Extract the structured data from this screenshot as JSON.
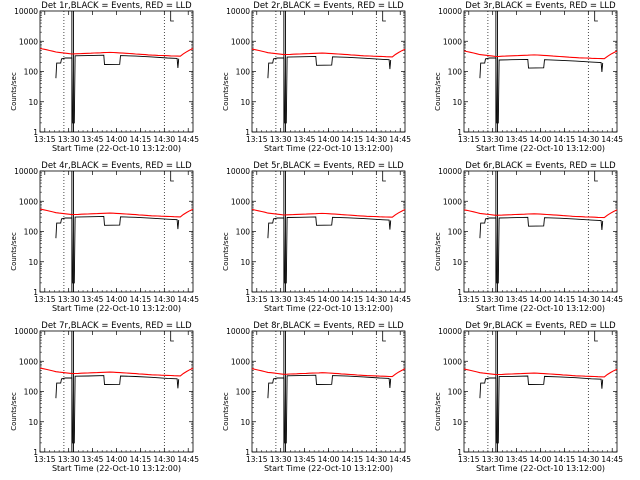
{
  "chart_data": {
    "type": "line",
    "xlabel": "Start Time (22-Oct-10 13:12:00)",
    "ylabel": "Counts/sec",
    "yscale": "log",
    "ylim": [
      1,
      10000
    ],
    "xlim_minutes_after_1312": [
      0,
      96
    ],
    "y_ticks": [
      "1",
      "10",
      "100",
      "1000",
      "10000"
    ],
    "x_ticks": [
      {
        "label": "13:15",
        "minute": 3
      },
      {
        "label": "13:30",
        "minute": 18
      },
      {
        "label": "13:45",
        "minute": 33
      },
      {
        "label": "14:00",
        "minute": 48
      },
      {
        "label": "14:15",
        "minute": 63
      },
      {
        "label": "14:30",
        "minute": 78
      },
      {
        "label": "14:45",
        "minute": 93
      }
    ],
    "colors": {
      "events": "#000000",
      "lld": "#ff0000"
    },
    "dotted_lines_minute": [
      15,
      78
    ],
    "solid_lines_minute": [
      20,
      21
    ],
    "panels": [
      {
        "title": "Det 1r,BLACK = Events, RED = LLD",
        "lld_level": 400,
        "event_level": 330,
        "dip_level": 170
      },
      {
        "title": "Det 2r,BLACK = Events, RED = LLD",
        "lld_level": 380,
        "event_level": 300,
        "dip_level": 160
      },
      {
        "title": "Det 3r,BLACK = Events, RED = LLD",
        "lld_level": 330,
        "event_level": 240,
        "dip_level": 130
      },
      {
        "title": "Det 4r,BLACK = Events, RED = LLD",
        "lld_level": 380,
        "event_level": 300,
        "dip_level": 160
      },
      {
        "title": "Det 5r,BLACK = Events, RED = LLD",
        "lld_level": 370,
        "event_level": 290,
        "dip_level": 160
      },
      {
        "title": "Det 6r,BLACK = Events, RED = LLD",
        "lld_level": 360,
        "event_level": 280,
        "dip_level": 150
      },
      {
        "title": "Det 7r,BLACK = Events, RED = LLD",
        "lld_level": 410,
        "event_level": 320,
        "dip_level": 170
      },
      {
        "title": "Det 8r,BLACK = Events, RED = LLD",
        "lld_level": 390,
        "event_level": 330,
        "dip_level": 170
      },
      {
        "title": "Det 9r,BLACK = Events, RED = LLD",
        "lld_level": 380,
        "event_level": 310,
        "dip_level": 170
      }
    ]
  }
}
